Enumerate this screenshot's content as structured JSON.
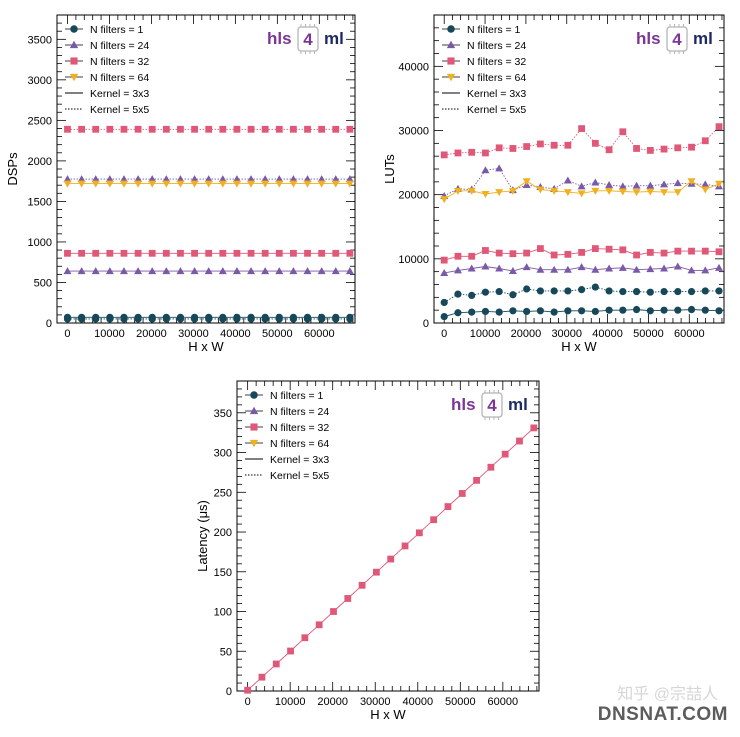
{
  "watermark": {
    "text_cn": "知乎 @宗喆人",
    "site": "DNSNAT.COM"
  },
  "logo": {
    "prefix": "hls",
    "digit": "4",
    "suffix": "ml"
  },
  "colors": {
    "N filters = 1": "#17485a",
    "N filters = 24": "#7a5aa8",
    "N filters = 32": "#e05878",
    "N filters = 64": "#f0b020",
    "logo_purple": "#7d3596",
    "logo_navy": "#1e2a66"
  },
  "chart_data": [
    {
      "type": "line",
      "xlabel": "H x W",
      "ylabel": "DSPs",
      "xlim": [
        -2500,
        68500
      ],
      "ylim": [
        0,
        3800
      ],
      "xticks": [
        0,
        10000,
        20000,
        30000,
        40000,
        50000,
        60000
      ],
      "yticks": [
        0,
        500,
        1000,
        1500,
        2000,
        2500,
        3000,
        3500
      ],
      "legend_position": "top-left",
      "x": [
        0,
        3364,
        6728,
        10092,
        13456,
        16820,
        20184,
        23548,
        26912,
        30276,
        33640,
        37004,
        40368,
        43732,
        47096,
        50460,
        53824,
        57188,
        60552,
        63916,
        67280
      ],
      "series": [
        {
          "name": "N filters = 1",
          "marker": "circle",
          "kernel": "3x3",
          "values": [
            70,
            70,
            70,
            70,
            70,
            70,
            70,
            70,
            70,
            70,
            70,
            70,
            70,
            70,
            70,
            70,
            70,
            70,
            70,
            70,
            70
          ]
        },
        {
          "name": "N filters = 1",
          "marker": "circle",
          "kernel": "5x5",
          "values": [
            50,
            50,
            50,
            50,
            50,
            50,
            50,
            50,
            50,
            50,
            50,
            50,
            50,
            50,
            50,
            50,
            50,
            50,
            50,
            50,
            50
          ]
        },
        {
          "name": "N filters = 24",
          "marker": "triangle",
          "kernel": "3x3",
          "values": [
            640,
            640,
            640,
            640,
            640,
            640,
            640,
            640,
            640,
            640,
            640,
            640,
            640,
            640,
            640,
            640,
            640,
            640,
            640,
            640,
            640
          ]
        },
        {
          "name": "N filters = 24",
          "marker": "triangle",
          "kernel": "5x5",
          "values": [
            1775,
            1775,
            1775,
            1775,
            1775,
            1775,
            1775,
            1775,
            1775,
            1775,
            1775,
            1775,
            1775,
            1775,
            1775,
            1775,
            1775,
            1775,
            1775,
            1775,
            1775
          ]
        },
        {
          "name": "N filters = 32",
          "marker": "square",
          "kernel": "3x3",
          "values": [
            860,
            860,
            860,
            860,
            860,
            860,
            860,
            860,
            860,
            860,
            860,
            860,
            860,
            860,
            860,
            860,
            860,
            860,
            860,
            860,
            860
          ]
        },
        {
          "name": "N filters = 32",
          "marker": "square",
          "kernel": "5x5",
          "values": [
            2390,
            2390,
            2390,
            2390,
            2390,
            2390,
            2390,
            2390,
            2390,
            2390,
            2390,
            2390,
            2390,
            2390,
            2390,
            2390,
            2390,
            2390,
            2390,
            2390,
            2390
          ]
        },
        {
          "name": "N filters = 64",
          "marker": "triangle-down",
          "kernel": "3x3",
          "values": [
            1720,
            1720,
            1720,
            1720,
            1720,
            1720,
            1720,
            1720,
            1720,
            1720,
            1720,
            1720,
            1720,
            1720,
            1720,
            1720,
            1720,
            1720,
            1720,
            1720,
            1720
          ]
        }
      ]
    },
    {
      "type": "line",
      "xlabel": "H x W",
      "ylabel": "LUTs",
      "xlim": [
        -2500,
        68500
      ],
      "ylim": [
        0,
        48000
      ],
      "xticks": [
        0,
        10000,
        20000,
        30000,
        40000,
        50000,
        60000
      ],
      "yticks": [
        0,
        10000,
        20000,
        30000,
        40000
      ],
      "legend_position": "top-left",
      "x": [
        0,
        3364,
        6728,
        10092,
        13456,
        16820,
        20184,
        23548,
        26912,
        30276,
        33640,
        37004,
        40368,
        43732,
        47096,
        50460,
        53824,
        57188,
        60552,
        63916,
        67280
      ],
      "series": [
        {
          "name": "N filters = 1",
          "marker": "circle",
          "kernel": "3x3",
          "values": [
            1000,
            1600,
            1700,
            1800,
            1700,
            1900,
            1800,
            1900,
            1700,
            1900,
            1900,
            1800,
            2000,
            2000,
            2100,
            1900,
            2000,
            2000,
            2100,
            2000,
            1900
          ]
        },
        {
          "name": "N filters = 1",
          "marker": "circle",
          "kernel": "5x5",
          "values": [
            3200,
            4500,
            4300,
            4800,
            4900,
            4400,
            5300,
            5000,
            5000,
            5000,
            5200,
            5600,
            5000,
            4900,
            4900,
            4800,
            4900,
            4900,
            4900,
            5000,
            5000
          ]
        },
        {
          "name": "N filters = 24",
          "marker": "triangle",
          "kernel": "3x3",
          "values": [
            7800,
            8200,
            8500,
            8800,
            8500,
            8100,
            8700,
            8300,
            8300,
            8300,
            8700,
            8300,
            8500,
            8600,
            8300,
            8400,
            8500,
            8800,
            8200,
            8200,
            8600
          ]
        },
        {
          "name": "N filters = 24",
          "marker": "triangle",
          "kernel": "5x5",
          "values": [
            19800,
            20900,
            20800,
            23800,
            24100,
            20700,
            21500,
            21200,
            20900,
            22200,
            21300,
            21900,
            21500,
            21300,
            21400,
            21400,
            21600,
            21800,
            21700,
            21600,
            21300
          ]
        },
        {
          "name": "N filters = 32",
          "marker": "square",
          "kernel": "3x3",
          "values": [
            9800,
            10400,
            10400,
            11300,
            10900,
            10800,
            10900,
            11600,
            10600,
            10700,
            11000,
            11600,
            11500,
            11400,
            10600,
            11000,
            10900,
            11200,
            11200,
            11200,
            11100
          ]
        },
        {
          "name": "N filters = 32",
          "marker": "square",
          "kernel": "5x5",
          "values": [
            26200,
            26500,
            26600,
            26500,
            27300,
            27200,
            27500,
            27900,
            27700,
            27700,
            30300,
            28000,
            27000,
            29800,
            27200,
            26900,
            27100,
            27300,
            27400,
            28400,
            30600
          ]
        },
        {
          "name": "N filters = 64",
          "marker": "triangle-down",
          "kernel": "3x3",
          "values": [
            19300,
            20600,
            20600,
            20100,
            20400,
            20600,
            22100,
            20800,
            20600,
            20400,
            20200,
            20600,
            20600,
            20500,
            20400,
            20500,
            20400,
            20400,
            22100,
            20800,
            21700
          ]
        }
      ]
    },
    {
      "type": "line",
      "xlabel": "H x W",
      "ylabel": "Latency (μs)",
      "xlim": [
        -2500,
        68500
      ],
      "ylim": [
        0,
        390
      ],
      "xticks": [
        0,
        10000,
        20000,
        30000,
        40000,
        50000,
        60000
      ],
      "yticks": [
        0,
        50,
        100,
        150,
        200,
        250,
        300,
        350
      ],
      "legend_position": "top-left",
      "x": [
        0,
        3364,
        6728,
        10092,
        13456,
        16820,
        20184,
        23548,
        26912,
        30276,
        33640,
        37004,
        40368,
        43732,
        47096,
        50460,
        53824,
        57188,
        60552,
        63916,
        67280
      ],
      "series": [
        {
          "name": "N filters = 32",
          "marker": "square",
          "kernel": "3x3",
          "values": [
            1,
            17.4,
            34,
            50.3,
            67,
            83.3,
            100,
            116.4,
            133,
            149.5,
            166,
            182.5,
            199,
            215.5,
            232,
            248.5,
            265,
            281.5,
            298,
            314.5,
            331
          ]
        }
      ]
    }
  ],
  "legend": [
    {
      "label": "N filters = 1",
      "marker": "circle",
      "color": "#17485a"
    },
    {
      "label": "N filters = 24",
      "marker": "triangle",
      "color": "#7a5aa8"
    },
    {
      "label": "N filters = 32",
      "marker": "square",
      "color": "#e05878"
    },
    {
      "label": "N filters = 64",
      "marker": "triangle-down",
      "color": "#f0b020"
    },
    {
      "label": "Kernel = 3x3",
      "marker": "none",
      "line": "solid",
      "color": "#000000"
    },
    {
      "label": "Kernel = 5x5",
      "marker": "none",
      "line": "dotted",
      "color": "#000000"
    }
  ]
}
